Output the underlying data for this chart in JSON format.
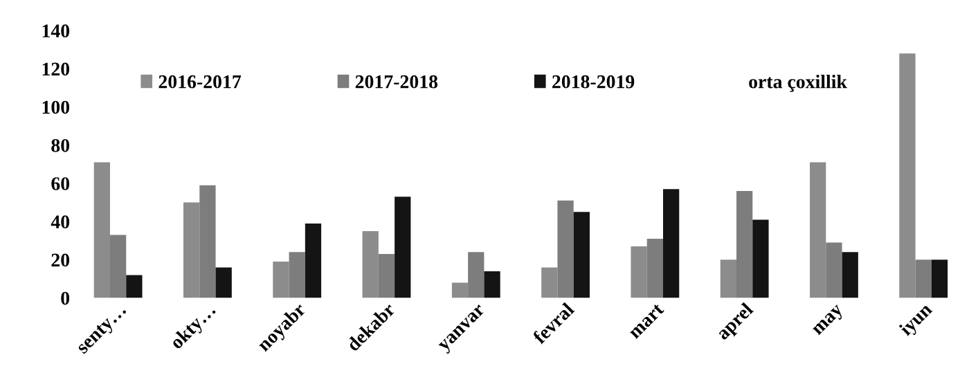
{
  "chart_data": {
    "type": "bar",
    "categories": [
      "senty…",
      "okty…",
      "noyabr",
      "dekabr",
      "yanvar",
      "fevral",
      "mart",
      "aprel",
      "may",
      "iyun"
    ],
    "series": [
      {
        "name": "2016-2017",
        "color": "#8c8c8c",
        "values": [
          71,
          50,
          19,
          35,
          8,
          16,
          27,
          20,
          71,
          128
        ]
      },
      {
        "name": "2017-2018",
        "color": "#7d7d7d",
        "values": [
          33,
          59,
          24,
          23,
          24,
          51,
          31,
          56,
          29,
          20
        ]
      },
      {
        "name": "2018-2019",
        "color": "#141414",
        "values": [
          12,
          16,
          39,
          53,
          14,
          45,
          57,
          41,
          24,
          20
        ]
      },
      {
        "name": "orta çoxillik",
        "type": "line",
        "values": [
          null,
          null,
          null,
          null,
          null,
          null,
          null,
          null,
          null,
          null
        ]
      }
    ],
    "ylim": [
      0,
      140
    ],
    "yticks": [
      0,
      20,
      40,
      60,
      80,
      100,
      120,
      140
    ],
    "grid": false,
    "legend": "top"
  }
}
